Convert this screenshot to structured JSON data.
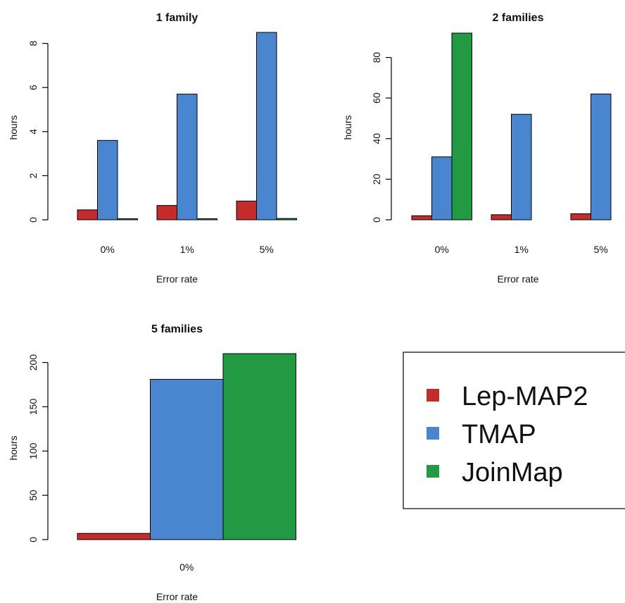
{
  "colors": {
    "Lep-MAP2": "#c62b2b",
    "TMAP": "#4a86cf",
    "JoinMap": "#229a44",
    "axis": "#000000"
  },
  "legend": {
    "entries": [
      "Lep-MAP2",
      "TMAP",
      "JoinMap"
    ]
  },
  "chart_data": [
    {
      "type": "bar",
      "title": "1 family",
      "xlabel": "Error rate",
      "ylabel": "hours",
      "categories": [
        "0%",
        "1%",
        "5%"
      ],
      "ylim": [
        0,
        8.5
      ],
      "yticks": [
        0,
        2,
        4,
        6,
        8
      ],
      "series": [
        {
          "name": "Lep-MAP2",
          "values": [
            0.45,
            0.65,
            0.85
          ]
        },
        {
          "name": "TMAP",
          "values": [
            3.6,
            5.7,
            8.5
          ]
        },
        {
          "name": "JoinMap",
          "values": [
            0.04,
            0.05,
            0.06
          ]
        }
      ]
    },
    {
      "type": "bar",
      "title": "2 families",
      "xlabel": "Error rate",
      "ylabel": "hours",
      "categories": [
        "0%",
        "1%",
        "5%"
      ],
      "ylim": [
        0,
        92
      ],
      "yticks": [
        0,
        20,
        40,
        60,
        80
      ],
      "series": [
        {
          "name": "Lep-MAP2",
          "values": [
            2,
            2.5,
            3
          ]
        },
        {
          "name": "TMAP",
          "values": [
            31,
            52,
            62
          ]
        },
        {
          "name": "JoinMap",
          "values": [
            92,
            null,
            null
          ]
        }
      ]
    },
    {
      "type": "bar",
      "title": "5 families",
      "xlabel": "Error rate",
      "ylabel": "hours",
      "categories": [
        "0%"
      ],
      "ylim": [
        0,
        210
      ],
      "yticks": [
        0,
        50,
        100,
        150,
        200
      ],
      "series": [
        {
          "name": "Lep-MAP2",
          "values": [
            7
          ]
        },
        {
          "name": "TMAP",
          "values": [
            181
          ]
        },
        {
          "name": "JoinMap",
          "values": [
            210
          ]
        }
      ]
    }
  ]
}
